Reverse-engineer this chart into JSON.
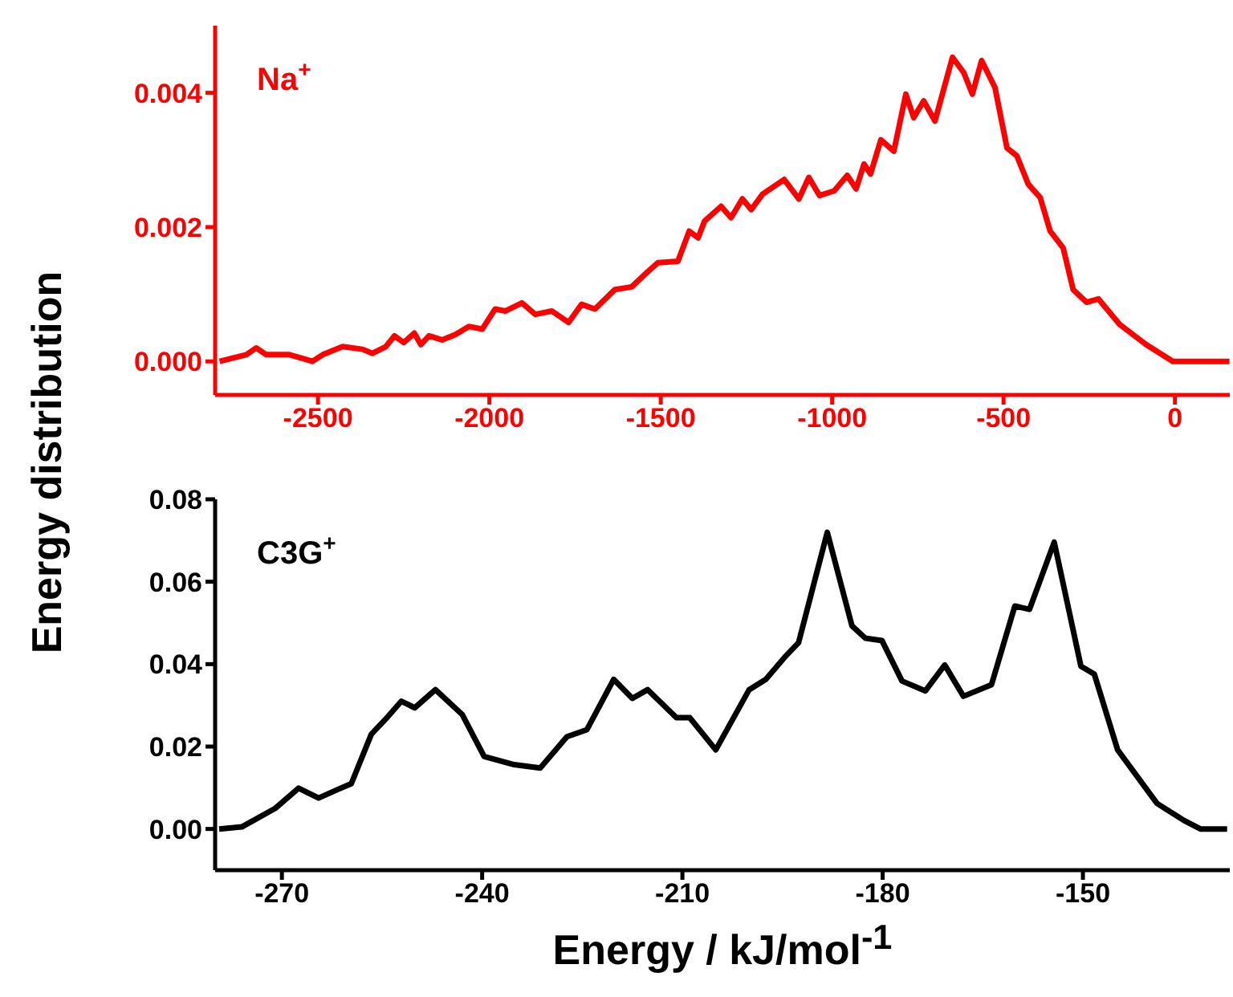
{
  "chart_data": [
    {
      "type": "line",
      "annotations": [
        "Na$^{+}$"
      ],
      "xlim": [
        -2800,
        160
      ],
      "xticks": [
        -2500,
        -2000,
        -1500,
        -1000,
        -500,
        0
      ],
      "ylim": [
        -0.0005,
        0.005
      ],
      "yticks": [
        {
          "value": 0,
          "label": "0.000"
        },
        {
          "value": 0.002,
          "label": "0.002"
        },
        {
          "value": 0.004,
          "label": "0.004"
        }
      ],
      "marker": "none",
      "line_style": "solid",
      "series": [
        {
          "color": "#ff0000",
          "x": [
            -2787,
            -2709,
            -2680,
            -2651,
            -2583,
            -2516,
            -2486,
            -2428,
            -2370,
            -2341,
            -2302,
            -2277,
            -2250,
            -2219,
            -2200,
            -2176,
            -2138,
            -2099,
            -2060,
            -2021,
            -1983,
            -1953,
            -1905,
            -1866,
            -1818,
            -1769,
            -1731,
            -1692,
            -1634,
            -1585,
            -1537,
            -1508,
            -1450,
            -1417,
            -1391,
            -1372,
            -1324,
            -1295,
            -1262,
            -1236,
            -1203,
            -1140,
            -1097,
            -1068,
            -1037,
            -994,
            -956,
            -930,
            -907,
            -888,
            -858,
            -820,
            -785,
            -762,
            -733,
            -700,
            -649,
            -616,
            -591,
            -564,
            -525,
            -490,
            -461,
            -428,
            -393,
            -364,
            -326,
            -297,
            -258,
            -223,
            -161,
            -84,
            -6,
            72,
            159
          ],
          "values": [
            0,
            0.0001,
            0.0002,
            0.0001,
            0.0001,
            0,
            0.0001,
            0.00022,
            0.00018,
            0.00012,
            0.00022,
            0.00038,
            0.00028,
            0.00042,
            0.00025,
            0.00038,
            0.00032,
            0.0004,
            0.00052,
            0.00048,
            0.00078,
            0.00075,
            0.00087,
            0.0007,
            0.00075,
            0.00058,
            0.00085,
            0.00078,
            0.00107,
            0.00111,
            0.00134,
            0.00147,
            0.00149,
            0.00194,
            0.00184,
            0.00209,
            0.00231,
            0.00214,
            0.00242,
            0.00226,
            0.00249,
            0.00271,
            0.00242,
            0.00274,
            0.00247,
            0.00254,
            0.00277,
            0.00257,
            0.00294,
            0.00279,
            0.0033,
            0.00313,
            0.00398,
            0.00363,
            0.00388,
            0.00358,
            0.00453,
            0.0043,
            0.00398,
            0.00448,
            0.00408,
            0.00318,
            0.00306,
            0.00264,
            0.00244,
            0.00194,
            0.00169,
            0.00107,
            0.00088,
            0.00093,
            0.00055,
            0.00025,
            0,
            0,
            0
          ]
        }
      ]
    },
    {
      "type": "line",
      "ylabel": "Energy distribution",
      "xlabel": "Energy / kJ/mol$^{-1}$",
      "annotations": [
        "C3G$^{+}$"
      ],
      "xlim": [
        -280,
        -128
      ],
      "xticks": [
        -270,
        -240,
        -210,
        -180,
        -150
      ],
      "ylim": [
        -0.01,
        0.08
      ],
      "yticks": [
        {
          "value": 0,
          "label": "0.00"
        },
        {
          "value": 0.02,
          "label": "0.02"
        },
        {
          "value": 0.04,
          "label": "0.04"
        },
        {
          "value": 0.06,
          "label": "0.06"
        },
        {
          "value": 0.08,
          "label": "0.08"
        }
      ],
      "marker": "none",
      "line_style": "solid",
      "series": [
        {
          "color": "#000000",
          "x": [
            -279.4,
            -276,
            -271,
            -267.5,
            -264.5,
            -261.6,
            -259.6,
            -256.6,
            -254.1,
            -252.1,
            -250.1,
            -247,
            -243,
            -239.7,
            -235.2,
            -231.3,
            -227.3,
            -224.3,
            -220.3,
            -217.5,
            -215.2,
            -210.9,
            -208.9,
            -205,
            -200,
            -197.5,
            -194.5,
            -192.6,
            -188.3,
            -184.6,
            -182.6,
            -180.1,
            -177.1,
            -173.6,
            -170.7,
            -167.9,
            -163.7,
            -160.2,
            -158,
            -154.3,
            -150.3,
            -148.3,
            -144.8,
            -138.9,
            -134.9,
            -132.4,
            -128.4
          ],
          "values": [
            0,
            0.0005,
            0.005,
            0.0099,
            0.0075,
            0.0096,
            0.011,
            0.023,
            0.0273,
            0.031,
            0.0294,
            0.0338,
            0.0278,
            0.0176,
            0.0156,
            0.0148,
            0.0224,
            0.0241,
            0.0363,
            0.0317,
            0.0338,
            0.027,
            0.027,
            0.0192,
            0.0338,
            0.0363,
            0.042,
            0.0452,
            0.072,
            0.0493,
            0.0463,
            0.0457,
            0.0359,
            0.0335,
            0.0398,
            0.0322,
            0.035,
            0.0541,
            0.0533,
            0.0696,
            0.0395,
            0.0376,
            0.0192,
            0.0062,
            0.0021,
            0,
            0
          ]
        }
      ]
    }
  ]
}
